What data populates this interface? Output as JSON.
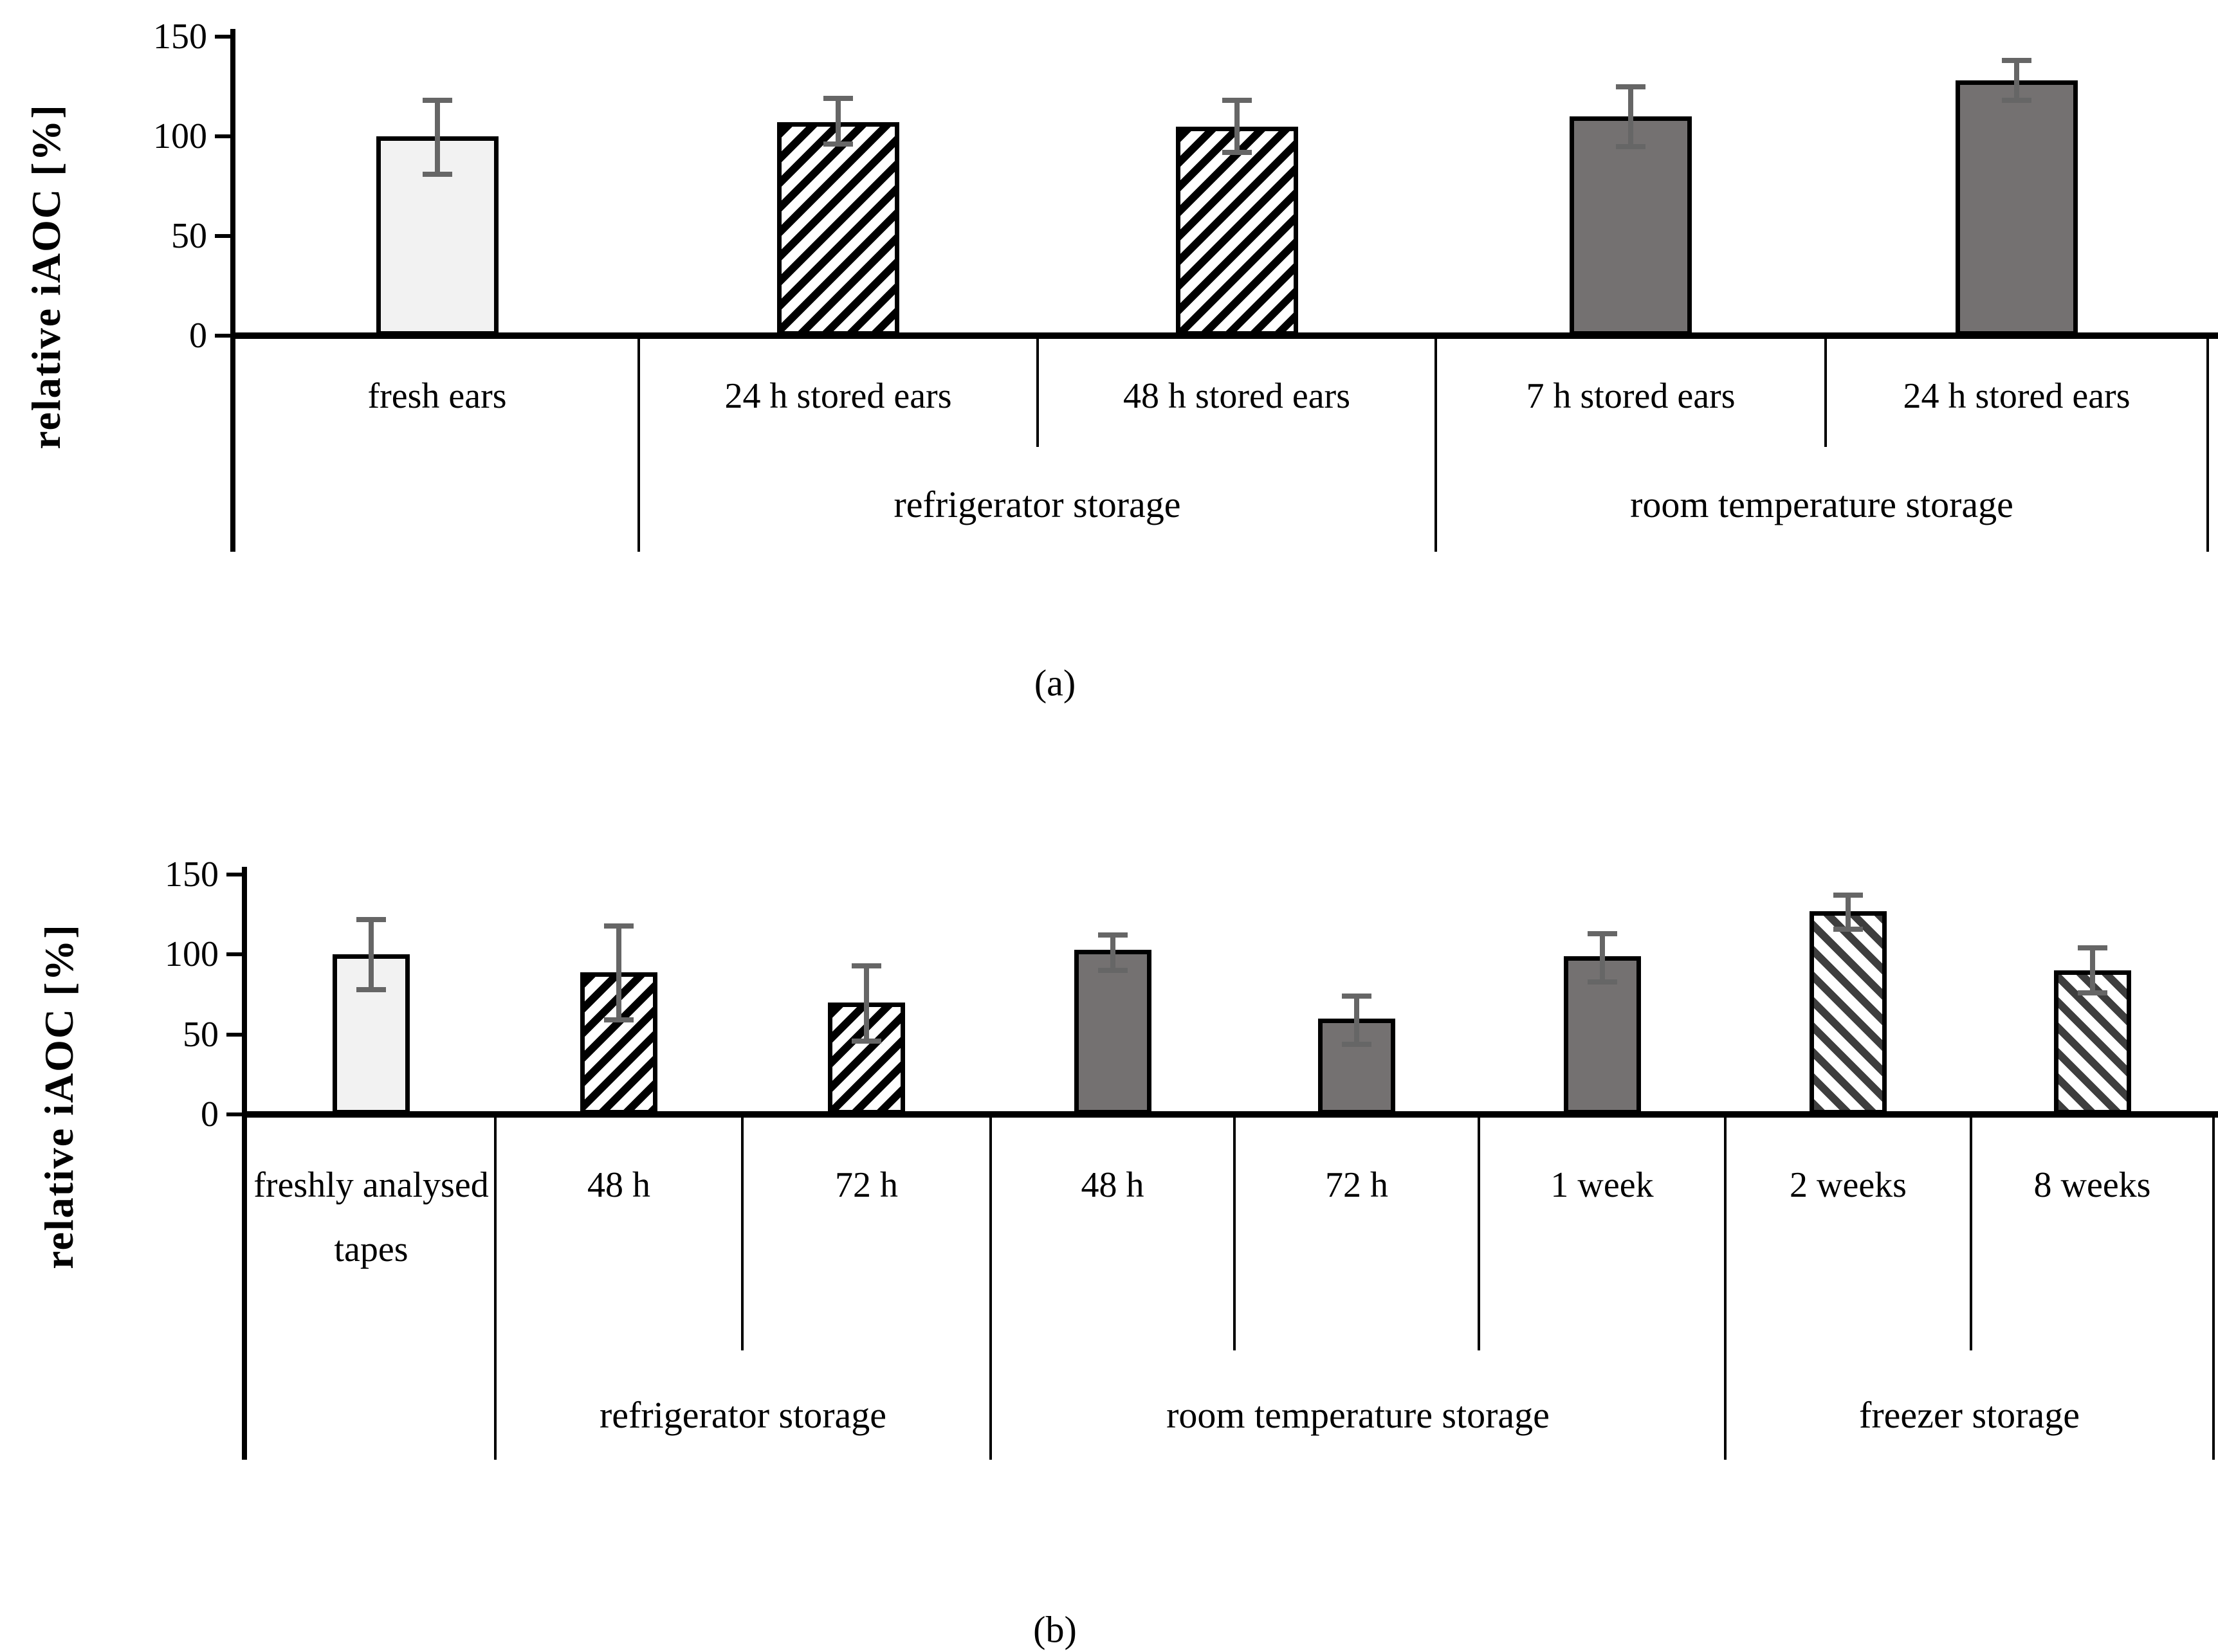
{
  "figure": {
    "background": "#ffffff",
    "panel_labels": [
      "(a)",
      "(b)"
    ]
  },
  "colors": {
    "light_bar_fill": "#f2f2f2",
    "solid_bar_fill": "#747171",
    "hatch_stripe_black": "#000000",
    "hatch_stripe_gray": "#3e3e3e",
    "error_bar": "#666666",
    "axis_line": "#000000",
    "text": "#000000"
  },
  "chart_data": [
    {
      "type": "bar",
      "panel_label": "(a)",
      "title": "",
      "xlabel": "",
      "ylabel": "relative iAOC [%]",
      "ylim": [
        0,
        150
      ],
      "yticks": [
        0,
        50,
        100,
        150
      ],
      "grid": false,
      "legend_position": "none",
      "categories": [
        "fresh ears",
        "24 h stored ears",
        "48 h stored ears",
        "7 h stored ears",
        "24 h stored ears"
      ],
      "groups": [
        {
          "label": "refrigerator storage",
          "start": 1,
          "end": 3
        },
        {
          "label": "room temperature storage",
          "start": 3,
          "end": 5
        }
      ],
      "series": [
        {
          "name": "relative iAOC",
          "values": [
            100,
            107,
            105,
            110,
            128
          ],
          "error_low": [
            81,
            96,
            92,
            95,
            118
          ],
          "error_high": [
            118,
            119,
            118,
            125,
            138
          ]
        }
      ],
      "bar_styles": [
        "light",
        "hatch-fwd",
        "hatch-fwd",
        "solid",
        "solid"
      ]
    },
    {
      "type": "bar",
      "panel_label": "(b)",
      "title": "",
      "xlabel": "",
      "ylabel": "relative iAOC [%]",
      "ylim": [
        0,
        150
      ],
      "yticks": [
        0,
        50,
        100,
        150
      ],
      "grid": false,
      "legend_position": "none",
      "categories": [
        "freshly analysed tapes",
        "48 h",
        "72 h",
        "48 h",
        "72 h",
        "1 week",
        "2 weeks",
        "8 weeks"
      ],
      "groups": [
        {
          "label": "refrigerator storage",
          "start": 1,
          "end": 3
        },
        {
          "label": "room temperature storage",
          "start": 3,
          "end": 6
        },
        {
          "label": "freezer storage",
          "start": 6,
          "end": 8
        }
      ],
      "series": [
        {
          "name": "relative iAOC",
          "values": [
            100,
            89,
            70,
            103,
            60,
            99,
            127,
            90
          ],
          "error_low": [
            78,
            59,
            46,
            90,
            44,
            83,
            116,
            76
          ],
          "error_high": [
            122,
            118,
            93,
            112,
            74,
            113,
            137,
            104
          ]
        }
      ],
      "bar_styles": [
        "light",
        "hatch-fwd",
        "hatch-fwd",
        "solid",
        "solid",
        "solid",
        "hatch-back",
        "hatch-back"
      ]
    }
  ]
}
